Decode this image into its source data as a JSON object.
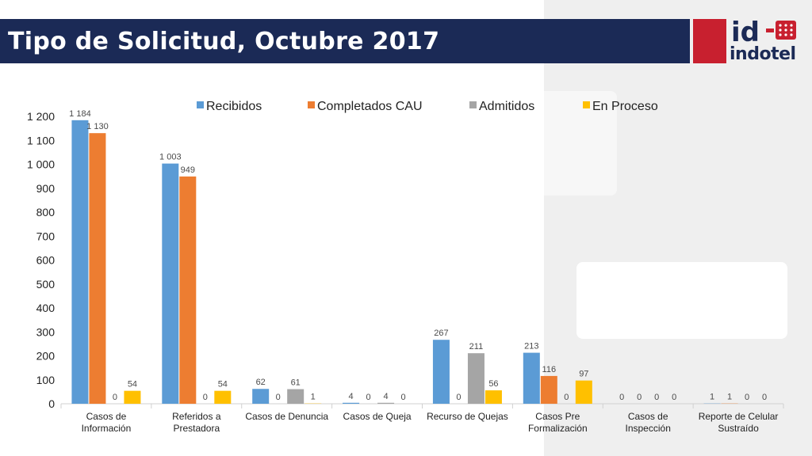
{
  "header": {
    "title": "Tipo de Solicitud, Octubre 2017"
  },
  "logo": {
    "mark": "id",
    "wordmark": "indotel"
  },
  "colors": {
    "header_bg": "#1b2a56",
    "logo_red": "#c8202f"
  },
  "chart_data": {
    "type": "bar",
    "categories": [
      [
        "Casos de",
        "Información"
      ],
      [
        "Referidos a",
        "Prestadora"
      ],
      [
        "Casos de Denuncia"
      ],
      [
        "Casos de Queja"
      ],
      [
        "Recurso de Quejas"
      ],
      [
        "Casos Pre",
        "Formalización"
      ],
      [
        "Casos de",
        "Inspección"
      ],
      [
        "Reporte de Celular",
        "Sustraído"
      ]
    ],
    "series": [
      {
        "name": "Recibidos",
        "color": "#5b9bd5",
        "values": [
          1184,
          1003,
          62,
          4,
          267,
          213,
          0,
          1
        ],
        "labels": [
          "1 184",
          "1 003",
          "62",
          "4",
          "267",
          "213",
          "0",
          "1"
        ]
      },
      {
        "name": "Completados CAU",
        "color": "#ed7d31",
        "values": [
          1130,
          949,
          0,
          0,
          0,
          116,
          0,
          1
        ],
        "labels": [
          "1 130",
          "949",
          "0",
          "0",
          "0",
          "116",
          "0",
          "1"
        ]
      },
      {
        "name": "Admitidos",
        "color": "#a5a5a5",
        "values": [
          0,
          0,
          61,
          4,
          211,
          0,
          0,
          0
        ],
        "labels": [
          "0",
          "0",
          "61",
          "4",
          "211",
          "0",
          "0",
          "0"
        ]
      },
      {
        "name": "En Proceso",
        "color": "#ffc000",
        "values": [
          54,
          54,
          1,
          0,
          56,
          97,
          0,
          0
        ],
        "labels": [
          "54",
          "54",
          "1",
          "0",
          "56",
          "97",
          "0",
          "0"
        ]
      }
    ],
    "ylim": [
      0,
      1200
    ],
    "yticks": [
      0,
      100,
      200,
      300,
      400,
      500,
      600,
      700,
      800,
      900,
      1000,
      1100,
      1200
    ],
    "ytick_labels": [
      "0",
      "100",
      "200",
      "300",
      "400",
      "500",
      "600",
      "700",
      "800",
      "900",
      "1 000",
      "1 100",
      "1 200"
    ],
    "legend": "top",
    "grid": false
  }
}
